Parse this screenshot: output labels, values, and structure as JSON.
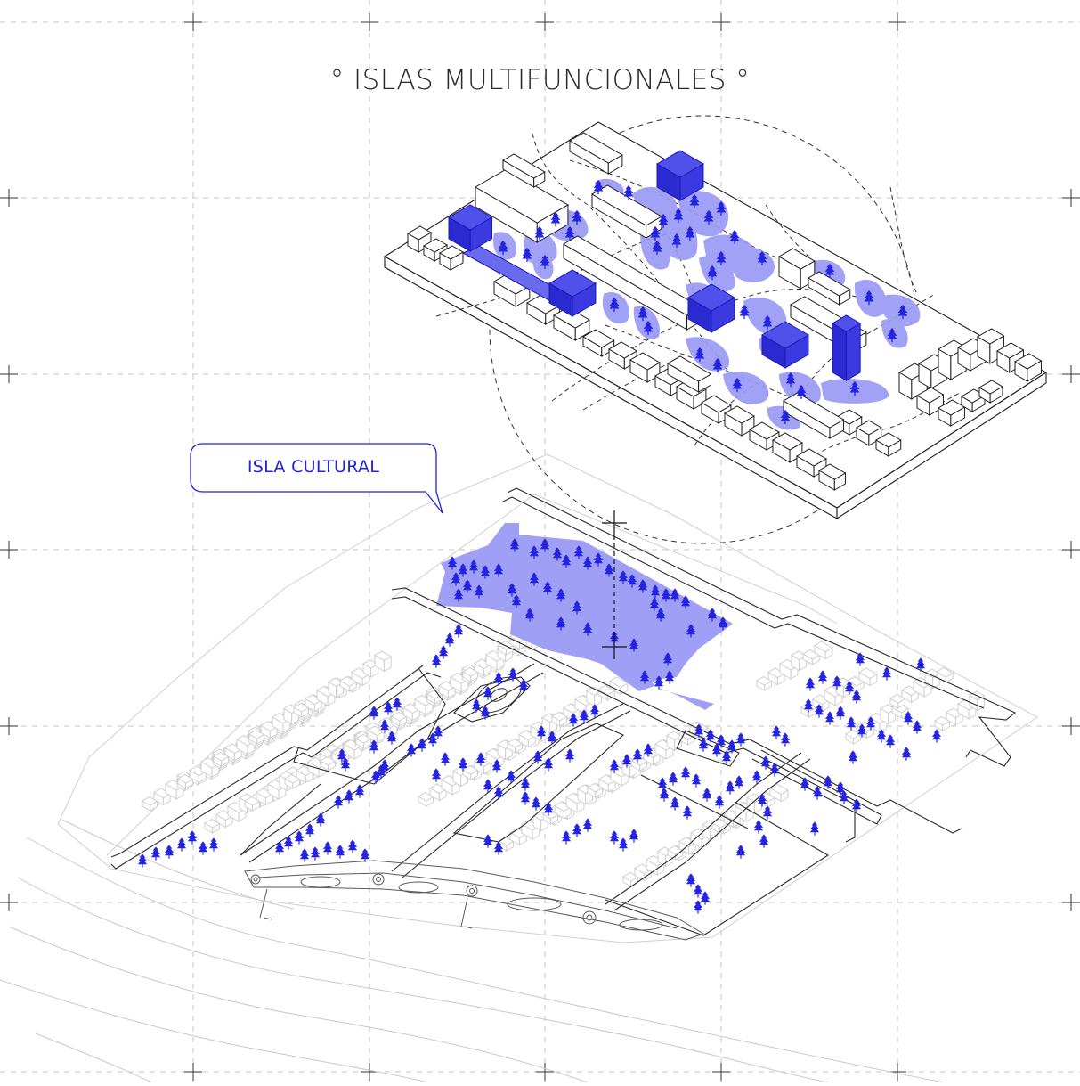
{
  "title": "° ISLAS MULTIFUNCIONALES °",
  "callout_label": "ISLA CULTURAL",
  "colors": {
    "accent": "#2323e0",
    "accent_fill": "#9a9af5",
    "volume_top": "#4a4ae8",
    "volume_side": "#2424c8",
    "line": "#1c1c1c",
    "light_line": "#c9c9c9",
    "grid": "#bdbdbd"
  },
  "icons": [
    "tree-icon",
    "crosshair-icon",
    "grid-cross-icon"
  ]
}
